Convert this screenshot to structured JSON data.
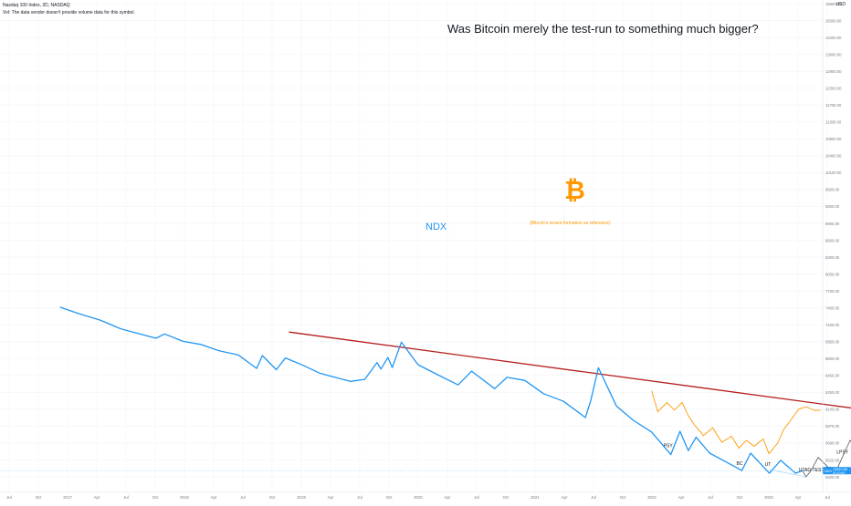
{
  "header": {
    "symbol_line": "Nasdaq 100 Index, 2D, NASDAQ",
    "volume_note": "Vol: The data vendor doesn't provide volume data for this symbol.",
    "currency": "USD"
  },
  "chart_data": {
    "type": "line",
    "title": "Was Bitcoin merely the test-run to something much bigger?",
    "price_tag": "NDX",
    "last_price": "13810.86",
    "countdown": "02:10:00",
    "y_ticks": [
      "15600.00",
      "15000.00",
      "14400.00",
      "13600.00",
      "12900.00",
      "12300.00",
      "11700.00",
      "11300.00",
      "10900.00",
      "10400.00",
      "10100.00",
      "9600.00",
      "9300.00",
      "8900.00",
      "8600.00",
      "8300.00",
      "8000.00",
      "7700.00",
      "7400.00",
      "7100.00",
      "6850.00",
      "6600.00",
      "6450.00",
      "6250.00",
      "6100.00",
      "5870.00",
      "5690.00",
      "5520.00",
      "5400.00"
    ],
    "x_ticks": [
      "Jul",
      "Oct",
      "2017",
      "Apr",
      "Jul",
      "Oct",
      "2018",
      "Apr",
      "Jul",
      "Oct",
      "2019",
      "Apr",
      "Jul",
      "Oct",
      "2020",
      "Apr",
      "Jul",
      "Oct",
      "2021",
      "Apr",
      "Jul",
      "Oct",
      "2022",
      "Apr",
      "Jul",
      "Oct",
      "2023",
      "Apr",
      "Jul"
    ],
    "annotations": {
      "ndx_label": "NDX",
      "btc_symbol": "₿",
      "btc_note": "(Bitcoin's recent formation as reference)",
      "wyckoff": [
        "PSY",
        "BC",
        "UT",
        "UTAD-TEST",
        "LPSY",
        "LPSY",
        "SOW"
      ]
    },
    "colors": {
      "ndx": "#2196f3",
      "bitcoin": "#ff9800",
      "projection": "#555555",
      "trendline": "#b71c1c",
      "price_tag": "#2196f3",
      "grid": "#f0f3fa"
    },
    "series": [
      {
        "values": [
          [
            "2016-11-01",
            4680
          ],
          [
            "2016-12-15",
            4890
          ],
          [
            "2017-02-01",
            5100
          ],
          [
            "2017-03-20",
            5400
          ],
          [
            "2017-05-01",
            5580
          ],
          [
            "2017-06-09",
            5750
          ],
          [
            "2017-06-29",
            5590
          ],
          [
            "2017-08-10",
            5870
          ],
          [
            "2017-09-20",
            5990
          ],
          [
            "2017-11-01",
            6250
          ],
          [
            "2017-12-15",
            6420
          ],
          [
            "2018-01-26",
            7020
          ],
          [
            "2018-02-08",
            6450
          ],
          [
            "2018-03-12",
            7080
          ],
          [
            "2018-04-02",
            6550
          ],
          [
            "2018-05-15",
            6900
          ],
          [
            "2018-06-20",
            7250
          ],
          [
            "2018-07-25",
            7450
          ],
          [
            "2018-08-29",
            7650
          ],
          [
            "2018-10-01",
            7550
          ],
          [
            "2018-10-29",
            6750
          ],
          [
            "2018-11-07",
            7050
          ],
          [
            "2018-11-23",
            6530
          ],
          [
            "2018-12-03",
            6980
          ],
          [
            "2018-12-24",
            5900
          ],
          [
            "2019-01-31",
            6850
          ],
          [
            "2019-03-15",
            7300
          ],
          [
            "2019-05-03",
            7830
          ],
          [
            "2019-06-03",
            7150
          ],
          [
            "2019-07-26",
            8030
          ],
          [
            "2019-08-23",
            7450
          ],
          [
            "2019-10-03",
            7600
          ],
          [
            "2019-11-15",
            8300
          ],
          [
            "2019-12-31",
            8730
          ],
          [
            "2020-02-19",
            9720
          ],
          [
            "2020-03-02",
            8700
          ],
          [
            "2020-03-20",
            6990
          ],
          [
            "2020-04-30",
            9000
          ],
          [
            "2020-06-08",
            9900
          ],
          [
            "2020-07-20",
            10700
          ],
          [
            "2020-09-02",
            12420
          ],
          [
            "2020-09-23",
            10650
          ],
          [
            "2020-10-12",
            12100
          ],
          [
            "2020-10-30",
            11070
          ],
          [
            "2020-11-30",
            12300
          ],
          [
            "2020-12-31",
            12900
          ],
          [
            "2021-02-12",
            13800
          ],
          [
            "2021-03-04",
            12300
          ],
          [
            "2021-04-16",
            14050
          ],
          [
            "2021-05-12",
            12900
          ],
          [
            "2021-06-15",
            14050
          ],
          [
            "2021-07-01",
            13800
          ]
        ]
      },
      {
        "values": [
          [
            "2020-07-20",
            8150
          ],
          [
            "2020-08-03",
            9350
          ],
          [
            "2020-08-24",
            8800
          ],
          [
            "2020-09-10",
            9250
          ],
          [
            "2020-09-28",
            8800
          ],
          [
            "2020-10-12",
            9600
          ],
          [
            "2020-10-26",
            10200
          ],
          [
            "2020-11-16",
            10950
          ],
          [
            "2020-12-07",
            10400
          ],
          [
            "2020-12-28",
            11450
          ],
          [
            "2021-01-19",
            11000
          ],
          [
            "2021-02-05",
            11900
          ],
          [
            "2021-02-22",
            11300
          ],
          [
            "2021-03-12",
            11750
          ],
          [
            "2021-04-02",
            11200
          ],
          [
            "2021-04-15",
            12350
          ],
          [
            "2021-05-05",
            11500
          ],
          [
            "2021-05-19",
            10500
          ],
          [
            "2021-06-04",
            9900
          ],
          [
            "2021-06-22",
            9200
          ],
          [
            "2021-07-09",
            9050
          ],
          [
            "2021-07-29",
            9280
          ],
          [
            "2021-08-12",
            9250
          ]
        ]
      },
      {
        "values": [
          [
            "2021-07-01",
            13800
          ],
          [
            "2021-07-09",
            14400
          ],
          [
            "2021-07-19",
            13900
          ],
          [
            "2021-08-06",
            12650
          ],
          [
            "2021-09-13",
            14100
          ],
          [
            "2021-10-18",
            11300
          ],
          [
            "2021-11-15",
            12650
          ],
          [
            "2021-12-06",
            8930
          ]
        ]
      },
      {
        "values": [
          [
            "2018-04-10",
            5520
          ],
          [
            "2022-07-10",
            10100
          ]
        ]
      }
    ]
  }
}
